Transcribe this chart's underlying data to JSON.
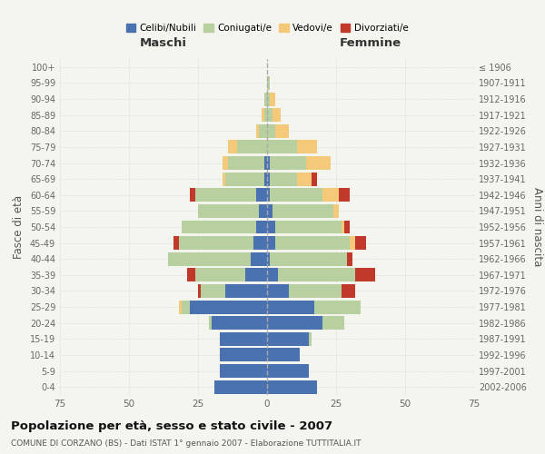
{
  "age_groups": [
    "0-4",
    "5-9",
    "10-14",
    "15-19",
    "20-24",
    "25-29",
    "30-34",
    "35-39",
    "40-44",
    "45-49",
    "50-54",
    "55-59",
    "60-64",
    "65-69",
    "70-74",
    "75-79",
    "80-84",
    "85-89",
    "90-94",
    "95-99",
    "100+"
  ],
  "birth_years": [
    "2002-2006",
    "1997-2001",
    "1992-1996",
    "1987-1991",
    "1982-1986",
    "1977-1981",
    "1972-1976",
    "1967-1971",
    "1962-1966",
    "1957-1961",
    "1952-1956",
    "1947-1951",
    "1942-1946",
    "1937-1941",
    "1932-1936",
    "1927-1931",
    "1922-1926",
    "1917-1921",
    "1912-1916",
    "1907-1911",
    "≤ 1906"
  ],
  "male": {
    "celibi": [
      19,
      17,
      17,
      17,
      20,
      28,
      15,
      8,
      6,
      5,
      4,
      3,
      4,
      1,
      1,
      0,
      0,
      0,
      0,
      0,
      0
    ],
    "coniugati": [
      0,
      0,
      0,
      0,
      1,
      3,
      9,
      18,
      30,
      27,
      27,
      22,
      22,
      14,
      13,
      11,
      3,
      1,
      1,
      0,
      0
    ],
    "vedovi": [
      0,
      0,
      0,
      0,
      0,
      1,
      0,
      0,
      0,
      0,
      0,
      0,
      0,
      1,
      2,
      3,
      1,
      1,
      0,
      0,
      0
    ],
    "divorziati": [
      0,
      0,
      0,
      0,
      0,
      0,
      1,
      3,
      0,
      2,
      0,
      0,
      2,
      0,
      0,
      0,
      0,
      0,
      0,
      0,
      0
    ]
  },
  "female": {
    "nubili": [
      18,
      15,
      12,
      15,
      20,
      17,
      8,
      4,
      1,
      3,
      3,
      2,
      1,
      1,
      1,
      0,
      0,
      0,
      0,
      0,
      0
    ],
    "coniugate": [
      0,
      0,
      0,
      1,
      8,
      17,
      19,
      28,
      28,
      27,
      24,
      22,
      19,
      10,
      13,
      11,
      3,
      2,
      1,
      1,
      0
    ],
    "vedove": [
      0,
      0,
      0,
      0,
      0,
      0,
      0,
      0,
      0,
      2,
      1,
      2,
      6,
      5,
      9,
      7,
      5,
      3,
      2,
      0,
      0
    ],
    "divorziate": [
      0,
      0,
      0,
      0,
      0,
      0,
      5,
      7,
      2,
      4,
      2,
      0,
      4,
      2,
      0,
      0,
      0,
      0,
      0,
      0,
      0
    ]
  },
  "colors": {
    "celibi": "#4a72b0",
    "coniugati": "#b8cfa0",
    "vedovi": "#f5c97a",
    "divorziati": "#c0392b"
  },
  "xlim": 75,
  "title": "Popolazione per età, sesso e stato civile - 2007",
  "subtitle": "COMUNE DI CORZANO (BS) - Dati ISTAT 1° gennaio 2007 - Elaborazione TUTTITALIA.IT",
  "xlabel_left": "Maschi",
  "xlabel_right": "Femmine",
  "ylabel_left": "Fasce di età",
  "ylabel_right": "Anni di nascita",
  "legend_labels": [
    "Celibi/Nubili",
    "Coniugati/e",
    "Vedovi/e",
    "Divorziati/e"
  ],
  "bg_color": "#f5f5f0",
  "plot_bg_color": "#f5f5f0",
  "grid_color": "#cccccc",
  "bar_height": 0.85
}
